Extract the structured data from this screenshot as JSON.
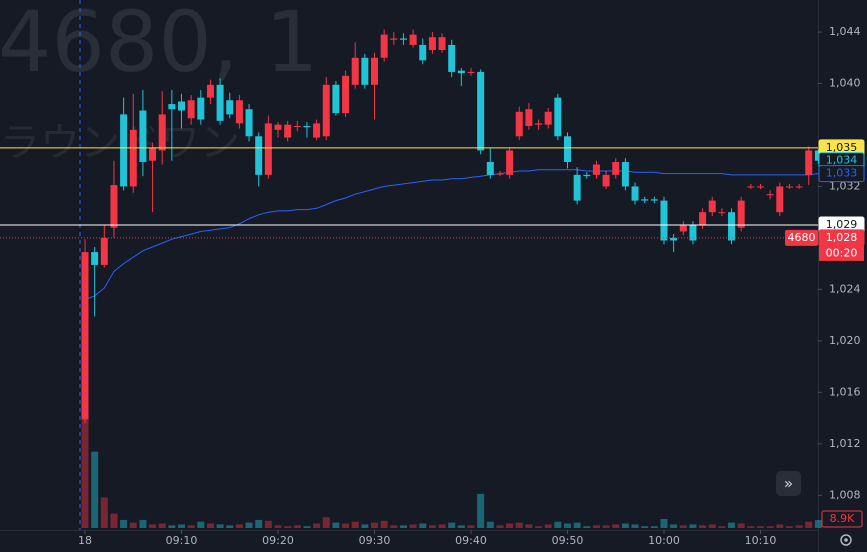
{
  "chart_data": {
    "type": "candlestick",
    "watermark_symbol": "4680, 1",
    "watermark_name": "ラウンドワン",
    "up_color": "#f23645",
    "down_color": "#22c3d6",
    "xlim": [
      -8.81,
      75.96
    ],
    "xticks": [
      {
        "value": 0,
        "label": "18"
      },
      {
        "value": 10,
        "label": "09:10"
      },
      {
        "value": 20,
        "label": "09:20"
      },
      {
        "value": 30,
        "label": "09:30"
      },
      {
        "value": 40,
        "label": "09:40"
      },
      {
        "value": 50,
        "label": "09:50"
      },
      {
        "value": 60,
        "label": "10:00"
      },
      {
        "value": 70,
        "label": "10:10"
      }
    ],
    "ylim": [
      1005.3,
      1046.49
    ],
    "yticks": [
      {
        "value": 1008,
        "label": "1,008"
      },
      {
        "value": 1012,
        "label": "1,012"
      },
      {
        "value": 1016,
        "label": "1,016"
      },
      {
        "value": 1020,
        "label": "1,020"
      },
      {
        "value": 1024,
        "label": "1,024"
      },
      {
        "value": 1032,
        "label": "1,032"
      },
      {
        "value": 1040,
        "label": "1,040"
      },
      {
        "value": 1044,
        "label": "1,044"
      }
    ],
    "x": [
      0,
      1,
      2,
      3,
      4,
      5,
      6,
      7,
      8,
      9,
      10,
      11,
      12,
      13,
      14,
      15,
      16,
      17,
      18,
      19,
      20,
      21,
      22,
      23,
      24,
      25,
      26,
      27,
      28,
      29,
      30,
      31,
      32,
      33,
      34,
      35,
      36,
      37,
      38,
      39,
      40,
      41,
      42,
      43,
      44,
      45,
      46,
      47,
      48,
      49,
      50,
      51,
      52,
      53,
      54,
      55,
      56,
      57,
      58,
      59,
      60,
      61,
      62,
      63,
      64,
      65,
      66,
      67,
      68,
      69,
      70,
      71,
      72,
      73,
      74,
      75,
      76
    ],
    "open": [
      1013.9,
      1026.9,
      1025.9,
      1028.8,
      1037.6,
      1032.0,
      1037.9,
      1034.0,
      1034.8,
      1038.4,
      1038.6,
      1037.3,
      1038.9,
      1038.9,
      1039.9,
      1038.7,
      1036.9,
      1038.0,
      1035.9,
      1032.9,
      1036.4,
      1035.8,
      1036.7,
      1036.7,
      1035.8,
      1035.9,
      1039.9,
      1037.7,
      1039.9,
      1042.0,
      1039.9,
      1042.0,
      1043.4,
      1043.5,
      1043.0,
      1043.0,
      1042.6,
      1042.6,
      1043.0,
      1041.0,
      1040.9,
      1040.9,
      1033.9,
      1033.0,
      1032.9,
      1035.9,
      1036.7,
      1036.8,
      1036.8,
      1038.9,
      1035.9,
      1032.9,
      1032.9,
      1032.9,
      1032.0,
      1032.9,
      1033.9,
      1032.0,
      1031.0,
      1031.0,
      1030.9,
      1028.0,
      1028.5,
      1029.0,
      1029.0,
      1030.0,
      1030.0,
      1030.0,
      1028.8,
      1032.0,
      1032.0,
      1031.4,
      1030.0,
      1032.0,
      1032.0,
      1032.9,
      1034.8
    ],
    "high": [
      1027.9,
      1027.3,
      1029.0,
      1034.0,
      1038.9,
      1039.2,
      1039.5,
      1035.4,
      1039.4,
      1039.5,
      1039.2,
      1039.1,
      1039.5,
      1040.3,
      1040.4,
      1039.3,
      1039.1,
      1038.4,
      1036.2,
      1037.5,
      1037.0,
      1037.1,
      1037.1,
      1037.0,
      1037.2,
      1040.5,
      1040.2,
      1041.0,
      1043.2,
      1042.3,
      1042.4,
      1044.2,
      1044.0,
      1043.9,
      1044.2,
      1043.5,
      1044.0,
      1043.9,
      1043.4,
      1041.2,
      1041.2,
      1041.1,
      1035.0,
      1033.2,
      1035.0,
      1038.2,
      1038.5,
      1037.2,
      1038.1,
      1039.2,
      1036.2,
      1033.5,
      1033.1,
      1034.0,
      1033.2,
      1034.2,
      1034.2,
      1032.3,
      1031.2,
      1031.2,
      1031.2,
      1028.3,
      1029.3,
      1029.3,
      1030.3,
      1031.2,
      1030.3,
      1030.3,
      1031.2,
      1032.2,
      1032.2,
      1031.7,
      1032.3,
      1032.2,
      1032.2,
      1035.1,
      1034.9
    ],
    "low": [
      1013.6,
      1021.9,
      1025.7,
      1028.0,
      1031.7,
      1031.5,
      1032.8,
      1030.0,
      1033.7,
      1034.0,
      1036.5,
      1036.8,
      1036.8,
      1038.4,
      1036.8,
      1037.3,
      1036.5,
      1035.5,
      1032.0,
      1032.6,
      1035.8,
      1035.5,
      1036.3,
      1035.8,
      1035.6,
      1035.6,
      1037.5,
      1037.4,
      1039.6,
      1039.6,
      1037.2,
      1041.7,
      1043.0,
      1043.0,
      1042.8,
      1041.5,
      1042.3,
      1042.4,
      1040.5,
      1039.8,
      1040.6,
      1034.5,
      1032.6,
      1032.8,
      1032.6,
      1035.6,
      1036.4,
      1036.4,
      1036.5,
      1035.6,
      1033.4,
      1030.6,
      1032.6,
      1032.6,
      1031.8,
      1032.6,
      1031.7,
      1030.6,
      1030.7,
      1030.7,
      1027.5,
      1026.9,
      1028.2,
      1027.5,
      1028.7,
      1029.7,
      1029.7,
      1027.5,
      1028.5,
      1031.8,
      1031.8,
      1031.0,
      1029.7,
      1031.8,
      1031.8,
      1032.1,
      1033.8
    ],
    "close": [
      1026.9,
      1025.9,
      1028.0,
      1032.1,
      1032.0,
      1036.4,
      1033.9,
      1035.0,
      1037.6,
      1038.0,
      1037.9,
      1038.7,
      1037.2,
      1039.9,
      1037.1,
      1037.6,
      1038.7,
      1035.9,
      1032.9,
      1036.9,
      1036.8,
      1036.8,
      1036.7,
      1036.6,
      1036.9,
      1039.9,
      1037.7,
      1040.6,
      1042.0,
      1039.9,
      1042.0,
      1043.8,
      1043.5,
      1043.4,
      1043.8,
      1041.8,
      1043.6,
      1043.6,
      1040.9,
      1040.8,
      1040.9,
      1034.8,
      1032.9,
      1033.0,
      1034.8,
      1037.8,
      1038.0,
      1036.9,
      1037.8,
      1035.9,
      1033.9,
      1030.9,
      1032.8,
      1033.7,
      1032.9,
      1033.9,
      1032.0,
      1030.9,
      1030.9,
      1030.9,
      1027.8,
      1027.8,
      1029.0,
      1027.8,
      1030.0,
      1030.9,
      1030.0,
      1027.8,
      1030.9,
      1032.0,
      1032.0,
      1031.4,
      1032.0,
      1032.0,
      1032.0,
      1034.8,
      1034.0
    ],
    "vwap": {
      "color": "#2962ff",
      "values": [
        1023.2,
        1023.5,
        1024.1,
        1025.4,
        1026.0,
        1026.5,
        1027.0,
        1027.3,
        1027.6,
        1027.9,
        1028.1,
        1028.3,
        1028.5,
        1028.6,
        1028.7,
        1028.8,
        1029.1,
        1029.5,
        1029.8,
        1030.0,
        1030.1,
        1030.1,
        1030.2,
        1030.2,
        1030.3,
        1030.6,
        1030.9,
        1031.1,
        1031.4,
        1031.6,
        1031.8,
        1032.0,
        1032.1,
        1032.2,
        1032.3,
        1032.4,
        1032.5,
        1032.5,
        1032.6,
        1032.6,
        1032.7,
        1032.8,
        1032.9,
        1033.0,
        1033.1,
        1033.2,
        1033.2,
        1033.3,
        1033.3,
        1033.3,
        1033.3,
        1033.3,
        1033.2,
        1033.2,
        1033.2,
        1033.2,
        1033.2,
        1033.1,
        1033.1,
        1033.1,
        1033.0,
        1033.0,
        1033.0,
        1033.0,
        1033.0,
        1033.0,
        1033.0,
        1032.9,
        1032.9,
        1032.9,
        1032.9,
        1032.9,
        1032.9,
        1032.9,
        1032.9,
        1032.9,
        1033.0
      ]
    },
    "volume": [
      245000,
      85000,
      34000,
      16000,
      9000,
      6000,
      9000,
      4000,
      5000,
      3000,
      4000,
      3000,
      7000,
      5000,
      4000,
      3000,
      4000,
      6000,
      9000,
      8000,
      3000,
      2000,
      3000,
      2000,
      5000,
      12000,
      6000,
      5000,
      7000,
      4000,
      6000,
      8000,
      3000,
      3000,
      4000,
      5000,
      3000,
      4000,
      6000,
      3000,
      3000,
      38000,
      7000,
      3000,
      5000,
      6000,
      4000,
      2000,
      4000,
      7000,
      5000,
      6000,
      2000,
      3000,
      3000,
      4000,
      5000,
      4000,
      2000,
      2000,
      10000,
      4000,
      3000,
      4000,
      3000,
      4000,
      2000,
      6000,
      5000,
      2000,
      2000,
      2000,
      4000,
      2000,
      3000,
      7000,
      8900
    ],
    "volume_marker": {
      "value": 8900,
      "label": "8.9K"
    },
    "price_markers": [
      {
        "value": 1035,
        "label": "1,035",
        "color": "#fbe44a",
        "text_color": "#131722",
        "line": "solid"
      },
      {
        "value": 1034,
        "label": "1,034",
        "color": "#22c3d6",
        "text_color": "#22c3d6",
        "line": "none"
      },
      {
        "value": 1033,
        "label": "1,033",
        "color": "#2962ff",
        "text_color": "#2962ff",
        "line": "none"
      },
      {
        "value": 1029,
        "label": "1,029",
        "color": "#ffffff",
        "text_color": "#131722",
        "line": "solid"
      },
      {
        "value": 1028,
        "label": "1,028",
        "color": "#f23645",
        "text_color": "#ffffff",
        "line": "dotted",
        "tag": "4680",
        "countdown": "00:20"
      }
    ]
  }
}
